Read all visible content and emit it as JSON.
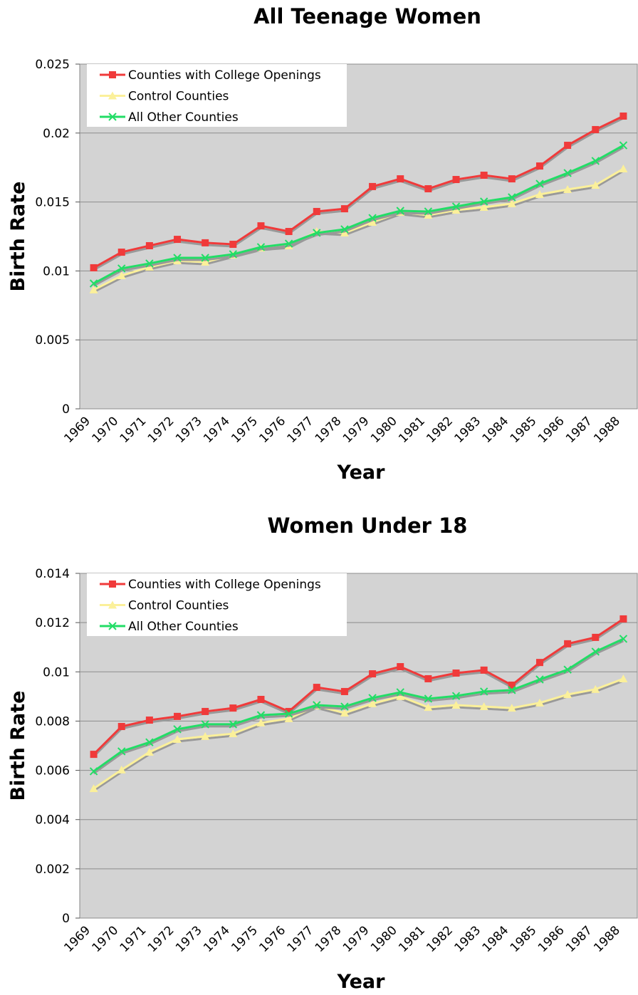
{
  "chart_data": [
    {
      "type": "line",
      "title": "All Teenage Women",
      "x_label": "Year",
      "y_label": "Birth Rate",
      "categories": [
        "1969",
        "1970",
        "1971",
        "1972",
        "1973",
        "1974",
        "1975",
        "1976",
        "1977",
        "1978",
        "1979",
        "1980",
        "1981",
        "1982",
        "1983",
        "1984",
        "1985",
        "1986",
        "1987",
        "1988"
      ],
      "series": [
        {
          "name": "Counties with College Openings",
          "color": "#f03a3a",
          "marker": "square",
          "values": [
            0.01023,
            0.01136,
            0.01183,
            0.01229,
            0.01204,
            0.01193,
            0.01327,
            0.01286,
            0.01431,
            0.01451,
            0.01612,
            0.01668,
            0.01596,
            0.01663,
            0.01694,
            0.01668,
            0.01761,
            0.01911,
            0.02025,
            0.02123
          ]
        },
        {
          "name": "Control Counties",
          "color": "#fbf09a",
          "marker": "triangle",
          "values": [
            0.00863,
            0.00966,
            0.01028,
            0.01074,
            0.01064,
            0.01116,
            0.01167,
            0.01183,
            0.01286,
            0.01276,
            0.01353,
            0.01426,
            0.01405,
            0.01441,
            0.01462,
            0.01488,
            0.01555,
            0.01591,
            0.01622,
            0.01741
          ]
        },
        {
          "name": "All Other Counties",
          "color": "#22dd66",
          "marker": "x",
          "values": [
            0.00909,
            0.01018,
            0.01054,
            0.01095,
            0.01095,
            0.01121,
            0.01173,
            0.01198,
            0.01276,
            0.01302,
            0.01384,
            0.01436,
            0.01431,
            0.01467,
            0.01503,
            0.01534,
            0.01632,
            0.0171,
            0.01798,
            0.01911
          ]
        }
      ],
      "ylim": [
        0,
        0.025
      ],
      "yticks": [
        0,
        0.005,
        0.01,
        0.015,
        0.02,
        0.025
      ],
      "grid": true,
      "legend": "upper left"
    },
    {
      "type": "line",
      "title": "Women Under 18",
      "x_label": "Year",
      "y_label": "Birth Rate",
      "categories": [
        "1969",
        "1970",
        "1971",
        "1972",
        "1973",
        "1974",
        "1975",
        "1976",
        "1977",
        "1978",
        "1979",
        "1980",
        "1981",
        "1982",
        "1983",
        "1984",
        "1985",
        "1986",
        "1987",
        "1988"
      ],
      "series": [
        {
          "name": "Counties with College Openings",
          "color": "#f03a3a",
          "marker": "square",
          "values": [
            0.00665,
            0.00778,
            0.00804,
            0.00819,
            0.00839,
            0.00853,
            0.00888,
            0.00839,
            0.00937,
            0.0092,
            0.00992,
            0.01021,
            0.00972,
            0.00995,
            0.01007,
            0.00946,
            0.01038,
            0.01114,
            0.0114,
            0.01215
          ]
        },
        {
          "name": "Control Counties",
          "color": "#fbf09a",
          "marker": "triangle",
          "values": [
            0.00526,
            0.00602,
            0.00674,
            0.00726,
            0.00738,
            0.00749,
            0.00793,
            0.0081,
            0.00862,
            0.00833,
            0.00871,
            0.009,
            0.00856,
            0.00865,
            0.00859,
            0.00853,
            0.00874,
            0.00908,
            0.00929,
            0.00972
          ]
        },
        {
          "name": "All Other Counties",
          "color": "#22dd66",
          "marker": "x",
          "values": [
            0.00596,
            0.00677,
            0.00714,
            0.00767,
            0.00787,
            0.00787,
            0.00824,
            0.0083,
            0.00865,
            0.00859,
            0.00894,
            0.00917,
            0.00891,
            0.00902,
            0.0092,
            0.00926,
            0.00969,
            0.01009,
            0.01082,
            0.01134
          ]
        }
      ],
      "ylim": [
        0,
        0.014
      ],
      "yticks": [
        0,
        0.002,
        0.004,
        0.006,
        0.008,
        0.01,
        0.012,
        0.014
      ],
      "grid": true,
      "legend": "upper left"
    }
  ]
}
